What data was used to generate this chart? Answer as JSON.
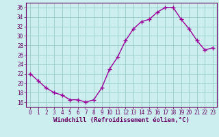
{
  "x": [
    0,
    1,
    2,
    3,
    4,
    5,
    6,
    7,
    8,
    9,
    10,
    11,
    12,
    13,
    14,
    15,
    16,
    17,
    18,
    19,
    20,
    21,
    22,
    23
  ],
  "y": [
    22,
    20.5,
    19,
    18,
    17.5,
    16.5,
    16.5,
    16,
    16.5,
    19,
    23,
    25.5,
    29,
    31.5,
    33,
    33.5,
    35,
    36,
    36,
    33.5,
    31.5,
    29,
    27,
    27.5
  ],
  "line_color": "#990099",
  "marker_color": "#990099",
  "bg_color": "#CCEEEE",
  "grid_color": "#99CCCC",
  "xlabel": "Windchill (Refroidissement éolien,°C)",
  "ylim": [
    15,
    37
  ],
  "yticks": [
    16,
    18,
    20,
    22,
    24,
    26,
    28,
    30,
    32,
    34,
    36
  ],
  "xlim": [
    -0.5,
    23.5
  ],
  "xticks": [
    0,
    1,
    2,
    3,
    4,
    5,
    6,
    7,
    8,
    9,
    10,
    11,
    12,
    13,
    14,
    15,
    16,
    17,
    18,
    19,
    20,
    21,
    22,
    23
  ],
  "axis_color": "#660066",
  "tick_fontsize": 5.5,
  "xlabel_fontsize": 6.5,
  "marker_size": 2.5,
  "line_width": 1.0
}
